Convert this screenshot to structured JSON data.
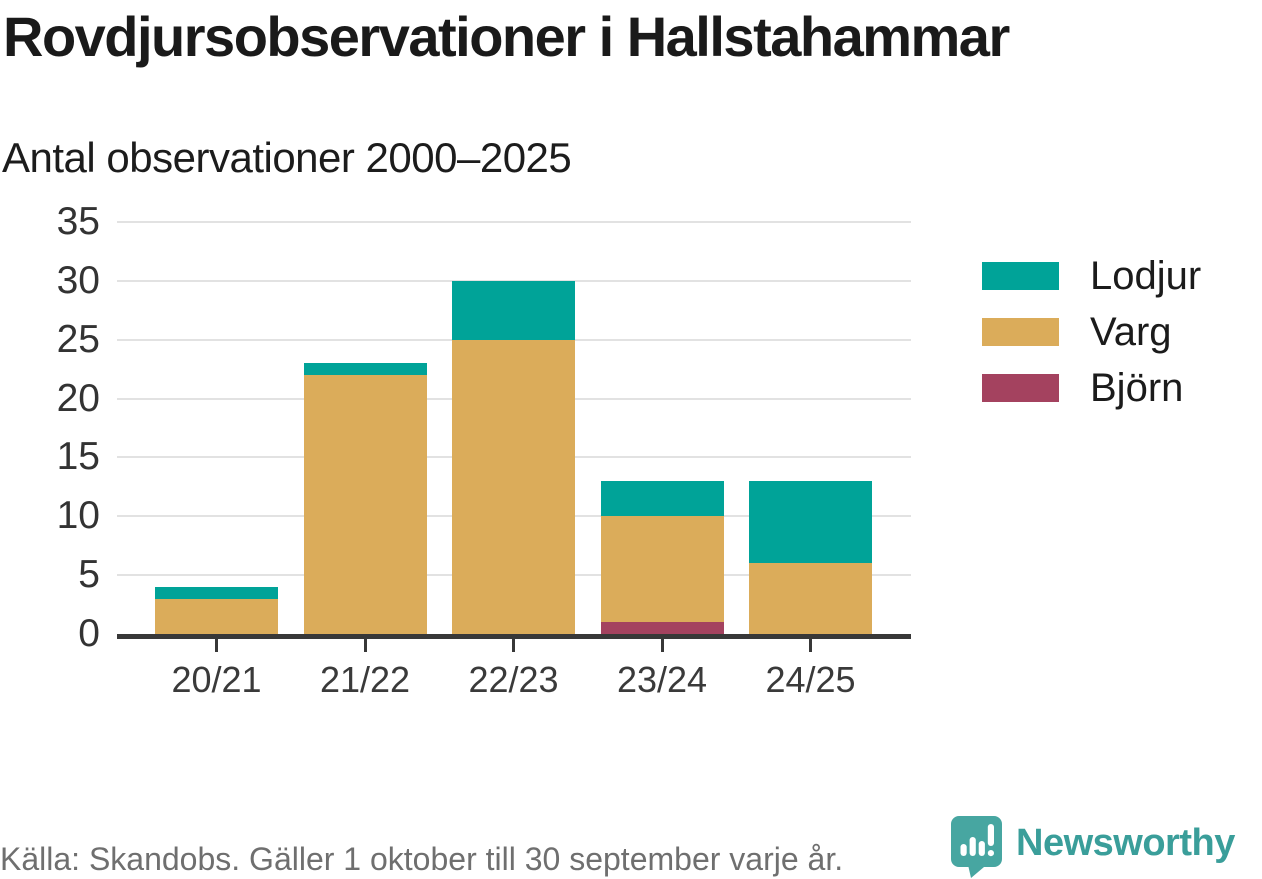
{
  "chart_data": {
    "type": "bar",
    "stacked": true,
    "title": "Rovdjursobservationer i Hallstahammar",
    "subtitle": "Antal observationer 2000–2025",
    "categories": [
      "20/21",
      "21/22",
      "22/23",
      "23/24",
      "24/25"
    ],
    "series": [
      {
        "name": "Lodjur",
        "color": "#00A398",
        "values": [
          1,
          1,
          5,
          3,
          7
        ]
      },
      {
        "name": "Varg",
        "color": "#DBAC5A",
        "values": [
          3,
          22,
          25,
          9,
          6
        ]
      },
      {
        "name": "Björn",
        "color": "#A4425F",
        "values": [
          0,
          0,
          0,
          1,
          0
        ]
      }
    ],
    "stack_order_bottom_to_top": [
      "Björn",
      "Varg",
      "Lodjur"
    ],
    "totals": [
      4,
      23,
      30,
      13,
      13
    ],
    "ylim": [
      0,
      35
    ],
    "yticks": [
      0,
      5,
      10,
      15,
      20,
      25,
      30,
      35
    ],
    "grid": "horizontal",
    "legend_position": "right",
    "legend_order": [
      "Lodjur",
      "Varg",
      "Björn"
    ]
  },
  "footer": {
    "source": "Källa: Skandobs. Gäller 1 oktober till 30 september varje år.",
    "brand": "Newsworthy"
  },
  "colors": {
    "lodjur": "#00A398",
    "varg": "#DBAC5A",
    "bjorn": "#A4425F",
    "axis_line": "#383838",
    "gridline": "#E2E2E2",
    "axis_text": "#3A3A3A",
    "title_text": "#1A1A1A",
    "source_text": "#6F6F6F",
    "brand_teal": "#3A9E9A",
    "logo_bubble": "#47A6A1"
  }
}
